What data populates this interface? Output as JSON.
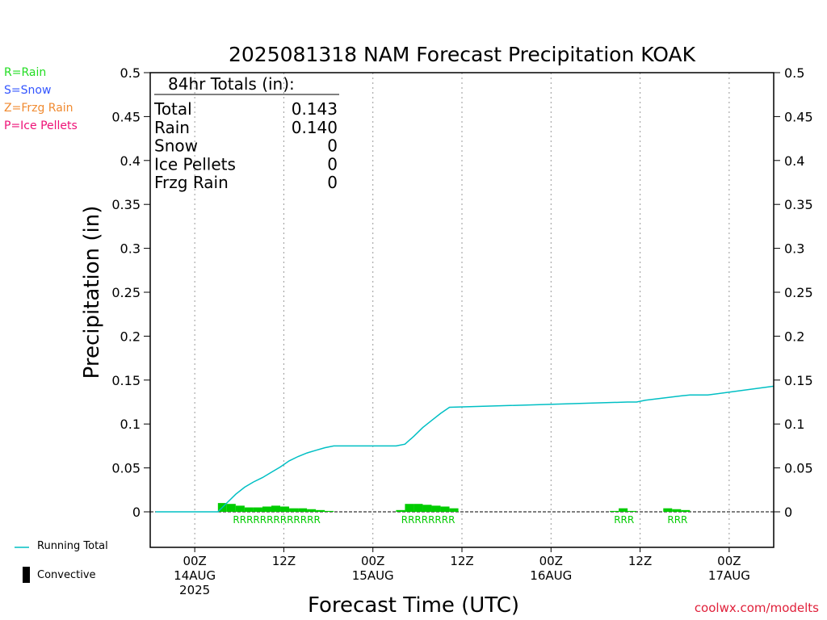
{
  "chart_data": {
    "type": "bar",
    "title": "2025081318 NAM Forecast Precipitation KOAK",
    "xlabel": "Forecast Time (UTC)",
    "ylabel": "Precipitation (in)",
    "ylim": [
      0,
      0.5
    ],
    "yticks": [
      "0",
      "0.05",
      "0.1",
      "0.15",
      "0.2",
      "0.25",
      "0.3",
      "0.35",
      "0.4",
      "0.45",
      "0.5"
    ],
    "ytick_values": [
      0,
      0.05,
      0.1,
      0.15,
      0.2,
      0.25,
      0.3,
      0.35,
      0.4,
      0.45,
      0.5
    ],
    "xlim_hours": [
      -5,
      65
    ],
    "xticks": [
      {
        "hour": 0,
        "lines": [
          "00Z",
          "14AUG",
          "2025"
        ]
      },
      {
        "hour": 10,
        "lines": [
          "12Z"
        ]
      },
      {
        "hour": 20,
        "lines": [
          "00Z",
          "15AUG"
        ]
      },
      {
        "hour": 30,
        "lines": [
          "12Z"
        ]
      },
      {
        "hour": 40,
        "lines": [
          "00Z",
          "16AUG"
        ]
      },
      {
        "hour": 50,
        "lines": [
          "12Z"
        ]
      },
      {
        "hour": 60,
        "lines": [
          "00Z",
          "17AUG"
        ]
      }
    ],
    "grid_x": true,
    "totals": {
      "header": "84hr Totals (in):",
      "rows": [
        {
          "label": "Total",
          "value": "0.143"
        },
        {
          "label": "Rain",
          "value": "0.140"
        },
        {
          "label": "Snow",
          "value": "0"
        },
        {
          "label": "Ice Pellets",
          "value": "0"
        },
        {
          "label": "Frzg Rain",
          "value": "0"
        }
      ]
    },
    "series": [
      {
        "name": "Running Total",
        "type": "line",
        "color": "#00bfc4",
        "x": [
          -4.4,
          2.6,
          3.6,
          4.6,
          5.6,
          6.6,
          7.6,
          8.6,
          9.6,
          10.6,
          11.6,
          12.6,
          13.6,
          14.6,
          15.6,
          16.6,
          17.6,
          18.6,
          19.6,
          20.6,
          21.6,
          22.6,
          23.6,
          24.6,
          25.6,
          26.6,
          27.6,
          28.6,
          48.6,
          49.6,
          50.6,
          54.6,
          55.6,
          56.6,
          57.6,
          65
        ],
        "y": [
          0,
          0,
          0.01,
          0.02,
          0.028,
          0.034,
          0.039,
          0.045,
          0.051,
          0.058,
          0.063,
          0.067,
          0.07,
          0.073,
          0.075,
          0.075,
          0.075,
          0.075,
          0.075,
          0.075,
          0.075,
          0.075,
          0.077,
          0.086,
          0.096,
          0.104,
          0.112,
          0.119,
          0.125,
          0.125,
          0.127,
          0.132,
          0.133,
          0.133,
          0.133,
          0.143
        ]
      },
      {
        "name": "Rain",
        "type": "bar",
        "color": "#00cc00",
        "x": [
          3.1,
          4.1,
          5.1,
          6.1,
          7.1,
          8.1,
          9.1,
          10.1,
          11.1,
          12.1,
          13.1,
          14.1,
          15.1,
          23.1,
          24.1,
          25.1,
          26.1,
          27.1,
          28.1,
          29.1,
          47.1,
          48.1,
          49.1,
          53.1,
          54.1,
          55.1
        ],
        "y": [
          0.01,
          0.009,
          0.007,
          0.005,
          0.005,
          0.006,
          0.007,
          0.006,
          0.004,
          0.004,
          0.003,
          0.002,
          0.001,
          0.002,
          0.009,
          0.009,
          0.008,
          0.007,
          0.006,
          0.004,
          0.001,
          0.004,
          0.001,
          0.004,
          0.003,
          0.002
        ]
      }
    ],
    "ptype_labels": [
      {
        "text": "RRRRRRRRRRRRR",
        "hour": 9.2
      },
      {
        "text": "RRRRRRRR",
        "hour": 26.2
      },
      {
        "text": "RRR",
        "hour": 48.2
      },
      {
        "text": "RRR",
        "hour": 54.2
      }
    ]
  },
  "legend": {
    "items": [
      {
        "text": "R=Rain",
        "color": "#22dd22"
      },
      {
        "text": "S=Snow",
        "color": "#3355ff"
      },
      {
        "text": "Z=Frzg Rain",
        "color": "#f08a30"
      },
      {
        "text": "P=Ice Pellets",
        "color": "#ee1177"
      }
    ],
    "running_total": "Running Total",
    "convective": "Convective"
  },
  "colors": {
    "axis": "#000000",
    "grid": "#999999",
    "running_total": "#00bfc4",
    "rain": "#00cc00",
    "credit": "#e0203a"
  },
  "credit": "coolwx.com/modelts"
}
